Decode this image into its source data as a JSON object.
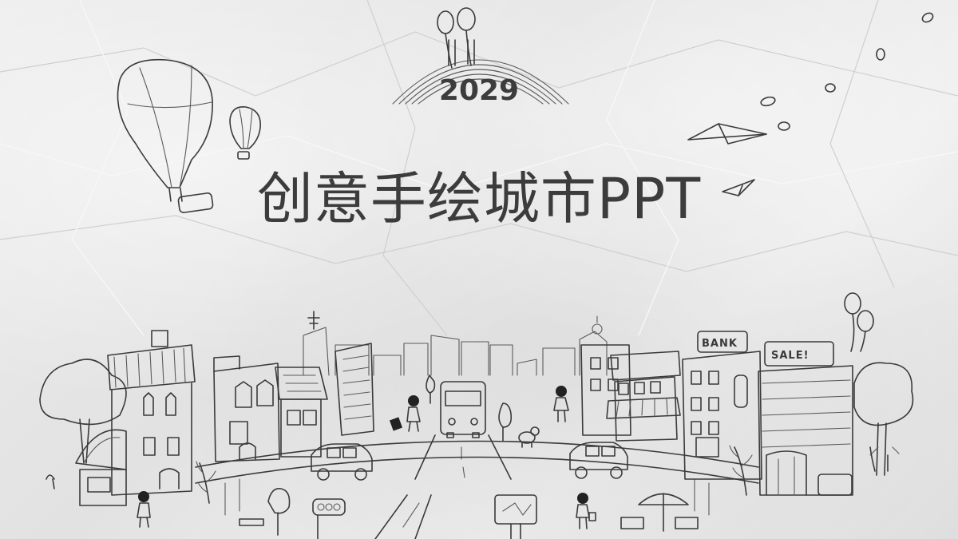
{
  "slide": {
    "year": "2029",
    "title": "创意手绘城市PPT",
    "bank_sign": "BANK",
    "sale_sign": "SALE!"
  },
  "colors": {
    "paper": "#e9e9e9",
    "ink": "#3c3c3c"
  }
}
